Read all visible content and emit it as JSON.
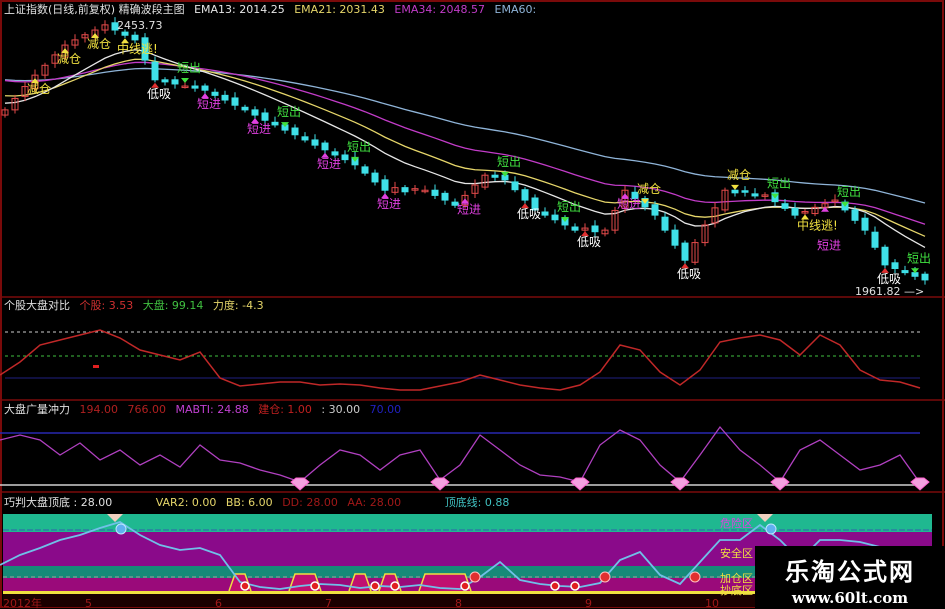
{
  "header": {
    "title": "上证指数(日线,前复权) 精确波段主图",
    "ema13": "EMA13: 2014.25",
    "ema21": "EMA21: 2031.43",
    "ema34": "EMA34: 2048.57",
    "ema60": "EMA60:"
  },
  "colors": {
    "up": "#e24a4a",
    "down": "#3fe0e8",
    "ema13": "#e6e6e6",
    "ema21": "#e6d66a",
    "ema34": "#c23cc8",
    "ema60": "#8fb4d8",
    "frame": "#7a0a0a",
    "band_green": "#1fb890",
    "band_purple": "#8a0a8a",
    "band_teal": "#168a78"
  },
  "chart_data": [
    {
      "type": "candlestick",
      "title": "上证指数(日线,前复权) 精确波段主图",
      "closes": [
        2290,
        2312,
        2335,
        2357,
        2376,
        2396,
        2415,
        2425,
        2435,
        2444,
        2454,
        2444,
        2434,
        2425,
        2386,
        2348,
        2344,
        2340,
        2336,
        2332,
        2328,
        2318,
        2309,
        2299,
        2290,
        2280,
        2270,
        2261,
        2251,
        2242,
        2232,
        2222,
        2213,
        2203,
        2194,
        2184,
        2168,
        2151,
        2135,
        2140,
        2132,
        2138,
        2135,
        2125,
        2116,
        2106,
        2125,
        2145,
        2164,
        2160,
        2155,
        2136,
        2116,
        2097,
        2087,
        2078,
        2068,
        2058,
        2062,
        2055,
        2058,
        2096,
        2135,
        2119,
        2103,
        2087,
        2058,
        2029,
        2000,
        2034,
        2068,
        2101,
        2135,
        2130,
        2132,
        2124,
        2126,
        2113,
        2100,
        2087,
        2094,
        2102,
        2109,
        2116,
        2097,
        2077,
        2058,
        2025,
        1991,
        1984,
        1976,
        1969,
        1962
      ],
      "ylim": [
        1961.82,
        2453.73
      ],
      "moving_averages": [
        "EMA13",
        "EMA21",
        "EMA34",
        "EMA60"
      ],
      "price_labels": {
        "high": "2453.73",
        "low": "1961.82"
      },
      "signals": [
        {
          "i": 3,
          "text": "减仓",
          "color": "#f0e040",
          "pos": "below"
        },
        {
          "i": 6,
          "text": "减仓",
          "color": "#f0e040",
          "pos": "below"
        },
        {
          "i": 9,
          "text": "减仓",
          "color": "#f0e040",
          "pos": "below"
        },
        {
          "i": 12,
          "text": "中线逃!",
          "color": "#f0e040",
          "pos": "below"
        },
        {
          "i": 15,
          "text": "低吸",
          "color": "#ffffff",
          "pos": "below"
        },
        {
          "i": 18,
          "text": "短出",
          "color": "#40e040",
          "pos": "above"
        },
        {
          "i": 20,
          "text": "短进",
          "color": "#e040e0",
          "pos": "below"
        },
        {
          "i": 25,
          "text": "短进",
          "color": "#e040e0",
          "pos": "below"
        },
        {
          "i": 28,
          "text": "短出",
          "color": "#40e040",
          "pos": "above"
        },
        {
          "i": 32,
          "text": "短进",
          "color": "#e040e0",
          "pos": "below"
        },
        {
          "i": 35,
          "text": "短出",
          "color": "#40e040",
          "pos": "above"
        },
        {
          "i": 38,
          "text": "短进",
          "color": "#e040e0",
          "pos": "below"
        },
        {
          "i": 46,
          "text": "短进",
          "color": "#e040e0",
          "pos": "below"
        },
        {
          "i": 50,
          "text": "短出",
          "color": "#40e040",
          "pos": "above"
        },
        {
          "i": 52,
          "text": "低吸",
          "color": "#ffffff",
          "pos": "below"
        },
        {
          "i": 56,
          "text": "短出",
          "color": "#40e040",
          "pos": "above"
        },
        {
          "i": 58,
          "text": "低吸",
          "color": "#ffffff",
          "pos": "below"
        },
        {
          "i": 62,
          "text": "短进",
          "color": "#e040e0",
          "pos": "below"
        },
        {
          "i": 64,
          "text": "减仓",
          "color": "#f0e040",
          "pos": "above"
        },
        {
          "i": 68,
          "text": "低吸",
          "color": "#ffffff",
          "pos": "below"
        },
        {
          "i": 73,
          "text": "减仓",
          "color": "#f0e040",
          "pos": "above"
        },
        {
          "i": 77,
          "text": "短出",
          "color": "#40e040",
          "pos": "above"
        },
        {
          "i": 80,
          "text": "中线逃!",
          "color": "#f0e040",
          "pos": "below"
        },
        {
          "i": 82,
          "text": "短进",
          "color": "#e040e0",
          "pos": "below"
        },
        {
          "i": 84,
          "text": "短出",
          "color": "#40e040",
          "pos": "above"
        },
        {
          "i": 88,
          "text": "低吸",
          "color": "#ffffff",
          "pos": "below"
        },
        {
          "i": 91,
          "text": "短出",
          "color": "#40e040",
          "pos": "above"
        }
      ]
    },
    {
      "type": "line",
      "title": "个股大盘对比",
      "legend": [
        {
          "text": "个股: 3.53",
          "color": "#d03030"
        },
        {
          "text": "大盘: 99.14",
          "color": "#40c040"
        },
        {
          "text": "力度: -4.3",
          "color": "#e6d66a"
        }
      ],
      "values": [
        25,
        38,
        55,
        60,
        65,
        70,
        62,
        50,
        45,
        40,
        48,
        22,
        14,
        16,
        18,
        18,
        15,
        16,
        15,
        12,
        10,
        10,
        14,
        18,
        25,
        20,
        15,
        12,
        10,
        15,
        28,
        55,
        50,
        28,
        15,
        30,
        58,
        62,
        65,
        60,
        45,
        65,
        55,
        30,
        20,
        18,
        12
      ],
      "ylim": [
        0,
        100
      ],
      "ref_lines": [
        {
          "value": 68,
          "color": "#cccccc",
          "style": "dotted"
        },
        {
          "value": 44,
          "color": "#40c040",
          "style": "dotted"
        },
        {
          "value": 22,
          "color": "#202080",
          "style": "solid"
        }
      ]
    },
    {
      "type": "line",
      "title": "大盘广量冲力",
      "legend": [
        {
          "text": "194.00",
          "color": "#b02020"
        },
        {
          "text": "766.00",
          "color": "#b02020"
        },
        {
          "text": "MABTI: 24.88",
          "color": "#c040d0"
        },
        {
          "text": "建仓: 1.00",
          "color": "#c02020"
        },
        {
          "text": ": 30.00",
          "color": "#cccccc"
        },
        {
          "text": "70.00",
          "color": "#2020c0"
        }
      ],
      "values": [
        45,
        50,
        45,
        30,
        42,
        25,
        35,
        20,
        30,
        18,
        40,
        25,
        22,
        15,
        10,
        3,
        20,
        35,
        30,
        15,
        30,
        35,
        5,
        20,
        50,
        35,
        20,
        10,
        8,
        3,
        40,
        55,
        45,
        20,
        3,
        30,
        58,
        35,
        20,
        3,
        35,
        45,
        30,
        15,
        20,
        30,
        2
      ],
      "ylim": [
        0,
        65
      ],
      "ref_lines": [
        {
          "value": 52,
          "color": "#2828b0"
        },
        {
          "value": 0,
          "color": "#d0d0d0"
        }
      ],
      "diamonds_at": [
        15,
        22,
        29,
        34,
        39,
        46
      ]
    },
    {
      "type": "area-bands",
      "title": "巧判大盘顶底 : 28.00",
      "legend": [
        {
          "text": "VAR2: 0.00",
          "color": "#e6d66a"
        },
        {
          "text": "BB: 6.00",
          "color": "#e6d66a"
        },
        {
          "text": "DD: 28.00",
          "color": "#a01818"
        },
        {
          "text": "AA: 28.00",
          "color": "#a01818"
        },
        {
          "text": "顶底线: 0.88",
          "color": "#40c0c0"
        }
      ],
      "values": [
        27,
        37,
        44,
        52,
        57,
        64,
        70,
        57,
        47,
        42,
        44,
        37,
        10,
        5,
        3,
        6,
        8,
        7,
        4,
        6,
        5,
        7,
        4,
        3,
        15,
        30,
        12,
        8,
        6,
        5,
        9,
        32,
        40,
        17,
        8,
        30,
        52,
        52,
        67,
        52,
        32,
        52,
        52,
        50,
        45,
        40,
        38
      ],
      "ylim": [
        0,
        80
      ],
      "zones": [
        "危险区",
        "安全区",
        "加仓区",
        "抄底区"
      ],
      "x_ticks": [
        {
          "label": "2012年",
          "i": 0
        },
        {
          "label": "5",
          "i": 8
        },
        {
          "label": "6",
          "i": 21
        },
        {
          "label": "7",
          "i": 32
        },
        {
          "label": "8",
          "i": 45
        },
        {
          "label": "9",
          "i": 58
        },
        {
          "label": "10",
          "i": 70
        }
      ],
      "buy_blocks": [
        [
          23,
          24
        ],
        [
          29,
          31
        ],
        [
          35,
          36
        ],
        [
          38,
          39
        ],
        [
          42,
          46
        ]
      ],
      "top_markers": [
        11,
        76
      ],
      "red_balls": [
        47,
        60,
        69
      ],
      "rings": [
        24,
        31,
        37,
        39,
        46,
        55,
        57
      ]
    }
  ],
  "watermark": {
    "name": "乐淘公式网",
    "url": "www.60lt.com"
  }
}
